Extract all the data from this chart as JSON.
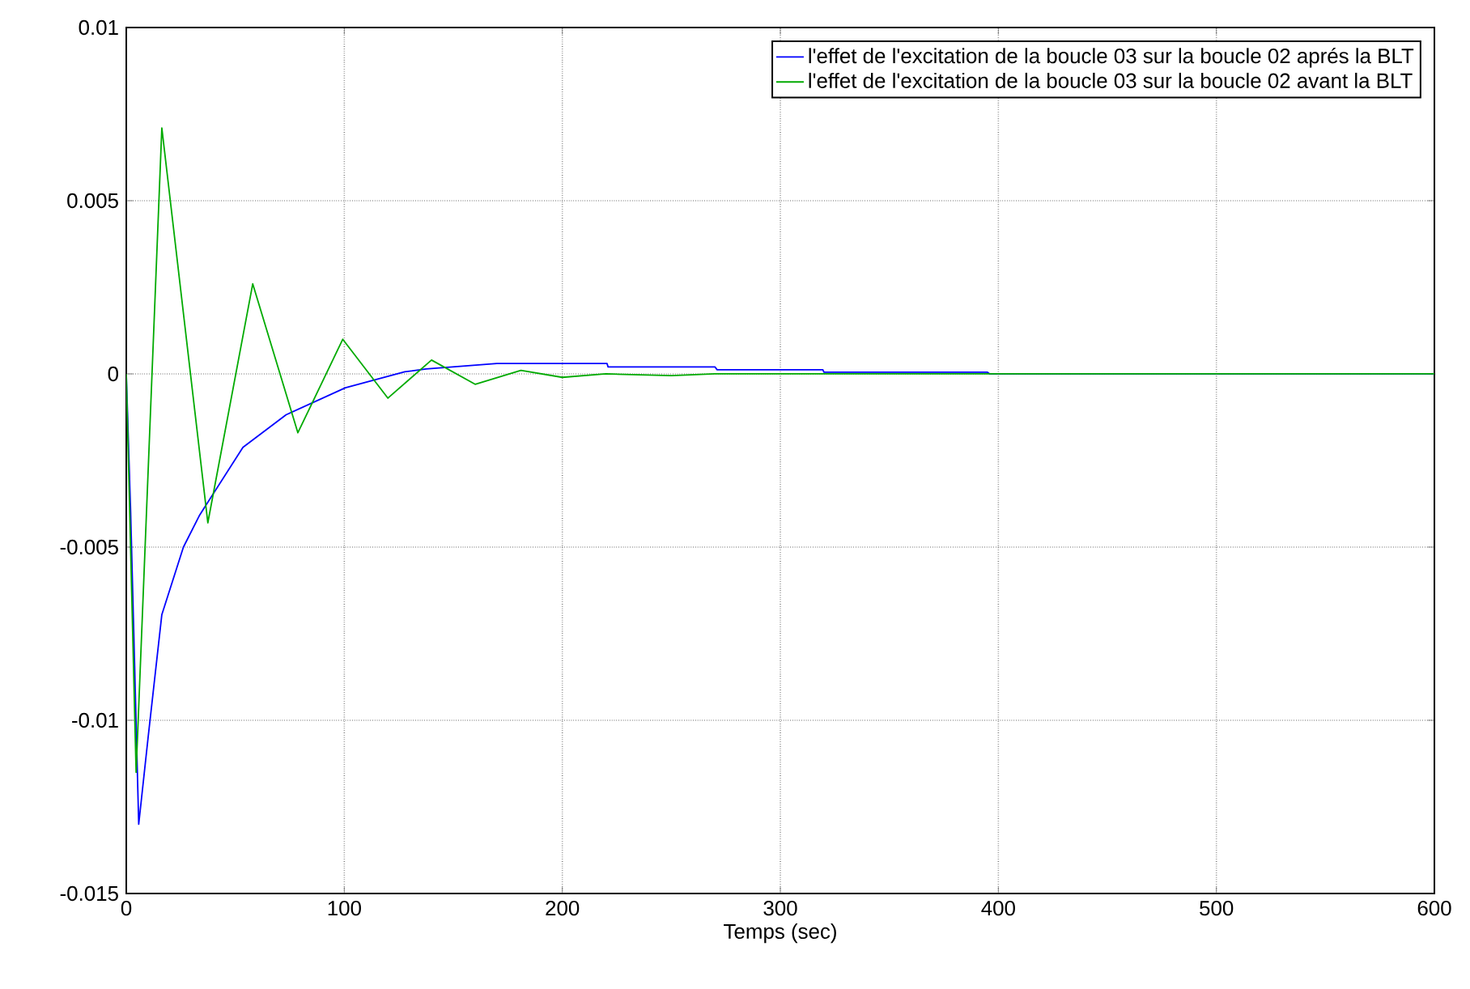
{
  "chart_data": {
    "type": "line",
    "xlabel": "Temps (sec)",
    "xlim": [
      0,
      600
    ],
    "xticks": [
      0,
      100,
      200,
      300,
      400,
      500,
      600
    ],
    "ylim": [
      -0.015,
      0.01
    ],
    "yticks": [
      -0.015,
      -0.01,
      -0.005,
      0,
      0.005,
      0.01
    ],
    "grid": true,
    "legend": "top right",
    "marker": "none",
    "line_style": "solid",
    "series": [
      {
        "name": "l'effet de l'excitation de la boucle 03 sur la boucle 02 aprés la BLT",
        "color": "#0000ff",
        "x": [
          0,
          2,
          5.7,
          10,
          16.3,
          26.2,
          33.7,
          53.5,
          73.3,
          100.5,
          127.7,
          137.5,
          170,
          220.5,
          221,
          270,
          271,
          319.5,
          320,
          395,
          396,
          600
        ],
        "values": [
          0,
          -0.004,
          -0.013,
          -0.0105,
          -0.00695,
          -0.005,
          -0.00407,
          -0.00212,
          -0.00118,
          -0.0004,
          6e-05,
          0.00014,
          0.0003,
          0.0003,
          0.0002,
          0.0002,
          0.00012,
          0.00012,
          5e-05,
          5e-05,
          0,
          0
        ]
      },
      {
        "name": "l'effet de l'excitation de la boucle 03 sur la boucle 02 avant la BLT",
        "color": "#00aa00",
        "x": [
          0,
          4.5,
          16.3,
          37.4,
          58,
          78.7,
          99.3,
          120,
          140,
          160,
          181,
          200,
          220,
          250,
          270,
          600
        ],
        "values": [
          0,
          -0.0115,
          0.0071,
          -0.0043,
          0.0026,
          -0.0017,
          0.001,
          -0.0007,
          0.0004,
          -0.0003,
          0.0001,
          -0.0001,
          0,
          -5e-05,
          0,
          0
        ]
      }
    ]
  }
}
